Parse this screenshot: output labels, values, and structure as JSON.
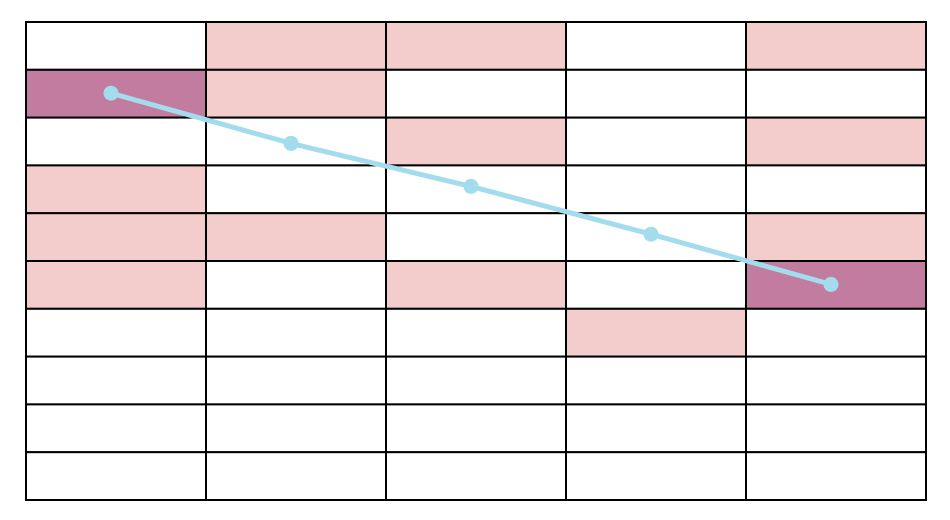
{
  "grid": {
    "rows": 10,
    "cols": 5,
    "cell_states": [
      [
        "empty",
        "light",
        "light",
        "empty",
        "light"
      ],
      [
        "dark",
        "light",
        "empty",
        "empty",
        "empty"
      ],
      [
        "empty",
        "empty",
        "light",
        "empty",
        "light"
      ],
      [
        "light",
        "empty",
        "empty",
        "empty",
        "empty"
      ],
      [
        "light",
        "light",
        "empty",
        "empty",
        "light"
      ],
      [
        "light",
        "empty",
        "light",
        "empty",
        "dark"
      ],
      [
        "empty",
        "empty",
        "empty",
        "light",
        "empty"
      ],
      [
        "empty",
        "empty",
        "empty",
        "empty",
        "empty"
      ],
      [
        "empty",
        "empty",
        "empty",
        "empty",
        "empty"
      ],
      [
        "empty",
        "empty",
        "empty",
        "empty",
        "empty"
      ]
    ]
  },
  "colors": {
    "empty": "#ffffff",
    "light": "#f3cccc",
    "dark": "#c17c9f",
    "border": "#000000",
    "path": "#a3dcec"
  },
  "path": {
    "points": [
      {
        "col": 0,
        "row": 1.5
      },
      {
        "col": 1,
        "row": 2.55
      },
      {
        "col": 2,
        "row": 3.45
      },
      {
        "col": 3,
        "row": 4.45
      },
      {
        "col": 4,
        "row": 5.5
      }
    ]
  }
}
